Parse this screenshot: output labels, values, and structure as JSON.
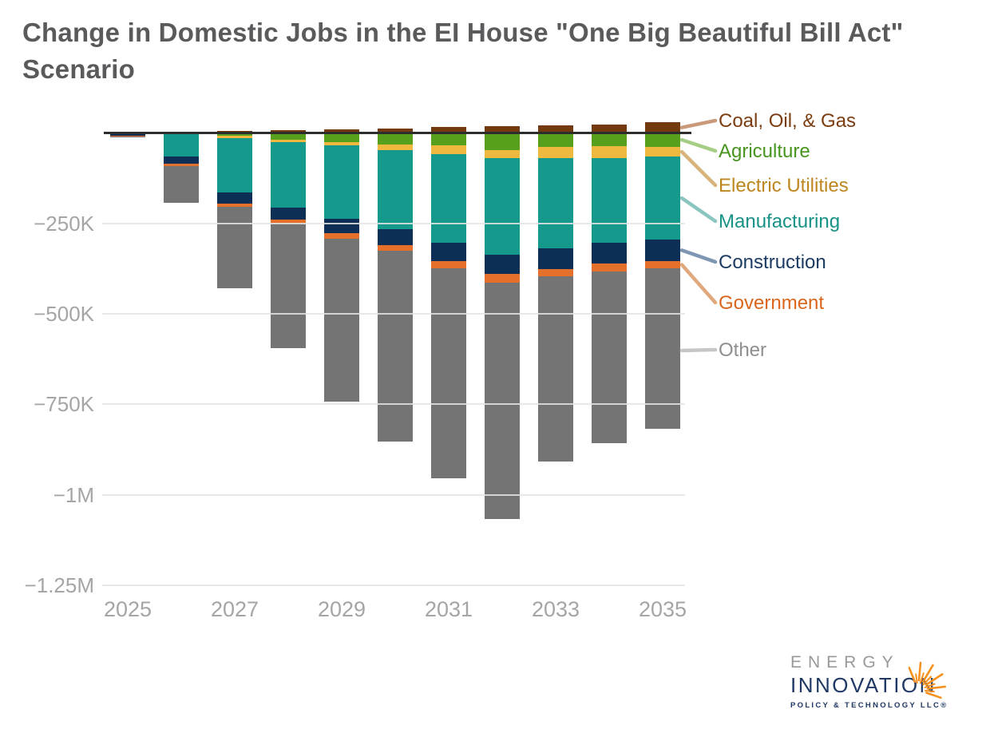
{
  "title": "Change in Domestic Jobs in the EI House \"One Big Beautiful Bill Act\" Scenario",
  "title_color": "#5a5a5c",
  "chart_data": {
    "type": "bar",
    "stacked": true,
    "orientation": "vertical",
    "categories": [
      "2025",
      "2026",
      "2027",
      "2028",
      "2029",
      "2030",
      "2031",
      "2032",
      "2033",
      "2034",
      "2035"
    ],
    "x_axis_tick_labels": [
      "2025",
      "2027",
      "2029",
      "2031",
      "2033",
      "2035"
    ],
    "values_unit": "change in jobs, thousands",
    "y_axis": {
      "tick_labels": [
        "−250K",
        "−500K",
        "−750K",
        "−1M",
        "−1.25M"
      ],
      "tick_values_thousands": [
        -250,
        -500,
        -750,
        -1000,
        -1250
      ],
      "ylim_thousands": [
        -1250,
        75
      ],
      "gridlines": true,
      "zero_line": true
    },
    "series": [
      {
        "name": "Coal, Oil, & Gas",
        "color": "#73390f",
        "values": [
          0,
          0,
          6,
          7,
          9,
          13,
          16,
          19,
          20,
          23,
          30
        ]
      },
      {
        "name": "Agriculture",
        "color": "#57a01d",
        "values": [
          0,
          0,
          -8,
          -19,
          -25,
          -32,
          -35,
          -47,
          -38,
          -37,
          -38
        ]
      },
      {
        "name": "Electric Utilities",
        "color": "#efb83e",
        "values": [
          0,
          0,
          -6,
          -7,
          -9,
          -15,
          -23,
          -22,
          -32,
          -32,
          -28
        ]
      },
      {
        "name": "Manufacturing",
        "color": "#14998c",
        "values": [
          0,
          -64,
          -150,
          -181,
          -203,
          -219,
          -245,
          -268,
          -249,
          -234,
          -228
        ]
      },
      {
        "name": "Construction",
        "color": "#0e2f55",
        "values": [
          -8,
          -20,
          -31,
          -32,
          -40,
          -44,
          -50,
          -53,
          -57,
          -57,
          -60
        ]
      },
      {
        "name": "Government",
        "color": "#e5702b",
        "values": [
          -1,
          -7,
          -9,
          -12,
          -15,
          -16,
          -20,
          -23,
          -21,
          -22,
          -20
        ]
      },
      {
        "name": "Other",
        "color": "#747474",
        "values": [
          -3,
          -103,
          -225,
          -343,
          -450,
          -527,
          -582,
          -654,
          -510,
          -475,
          -444
        ]
      }
    ],
    "legend_position": "right-of-last-bar-with-leader-lines"
  },
  "legend": {
    "items": [
      {
        "label": "Coal, Oil, & Gas",
        "series": "Coal, Oil, & Gas",
        "text_color": "#7b3c10",
        "leader_color": "#c8997a"
      },
      {
        "label": "Agriculture",
        "series": "Agriculture",
        "text_color": "#47951f",
        "leader_color": "#a6cd84"
      },
      {
        "label": "Electric Utilities",
        "series": "Electric Utilities",
        "text_color": "#bd861f",
        "leader_color": "#d6b47a"
      },
      {
        "label": "Manufacturing",
        "series": "Manufacturing",
        "text_color": "#189286",
        "leader_color": "#8ac5bf"
      },
      {
        "label": "Construction",
        "series": "Construction",
        "text_color": "#1d3c63",
        "leader_color": "#7e96b3"
      },
      {
        "label": "Government",
        "series": "Government",
        "text_color": "#da661c",
        "leader_color": "#e0a87d"
      },
      {
        "label": "Other",
        "series": "Other",
        "text_color": "#8f8f8f",
        "leader_color": "#c6c6c6"
      }
    ]
  },
  "axis_style": {
    "tick_label_color": "#a5a5a5",
    "gridline_color": "#e4e4e4",
    "zero_line_color": "#2d2d2d"
  },
  "logo": {
    "line1": "ENERGY",
    "line2": "INNOVATION",
    "line3": "POLICY & TECHNOLOGY LLC®",
    "energy_color": "#97999b",
    "innovation_color": "#1f3864",
    "tagline_color": "#1f3864",
    "burst_color": "#f6911e",
    "burst_icon": "sunburst-icon"
  }
}
